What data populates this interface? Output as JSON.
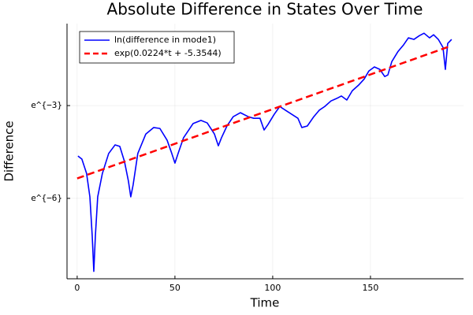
{
  "chart_data": {
    "type": "line",
    "title": "Absolute Difference in States Over Time",
    "x_label": "Time",
    "y_label": "Difference",
    "xlim": [
      -5.2,
      197.6
    ],
    "ylim": [
      -8.6,
      -0.35
    ],
    "xticks": [
      0,
      50,
      100,
      150
    ],
    "yticks": [
      {
        "value": -6,
        "label": "e^{−6}"
      },
      {
        "value": -3,
        "label": "e^{−3}"
      }
    ],
    "grid": true,
    "legend": "upper left",
    "series": [
      {
        "name": "ln(difference in mode1)",
        "color": "#0000ff",
        "dash": "solid",
        "x": [
          0.4,
          2.4,
          4.8,
          6.5,
          7.7,
          8.5,
          9.3,
          10.5,
          12.9,
          16.1,
          19.4,
          21.8,
          24.2,
          26.2,
          27.4,
          28.6,
          31,
          35.1,
          39.1,
          42.3,
          46,
          48.4,
          50,
          51.6,
          54.4,
          59.3,
          63.3,
          66.5,
          70.2,
          72.2,
          73.8,
          76.6,
          79.8,
          83.5,
          87.5,
          90.3,
          93.5,
          95.6,
          97.6,
          100.8,
          103.6,
          106.5,
          109.7,
          112.9,
          114.9,
          117.7,
          121,
          123.8,
          126.6,
          129.8,
          132.7,
          135.1,
          137.9,
          140.7,
          143.9,
          146.8,
          149.2,
          152,
          154.8,
          157.3,
          158.9,
          160.9,
          164.1,
          166.9,
          169.4,
          172.2,
          175,
          177.4,
          180.2,
          182.3,
          184.7,
          187.1,
          188.3,
          189.5,
          191.5
        ],
        "values": [
          -4.63,
          -4.73,
          -5.19,
          -5.95,
          -7.22,
          -8.36,
          -7.22,
          -5.95,
          -5.19,
          -4.55,
          -4.27,
          -4.32,
          -4.81,
          -5.44,
          -5.95,
          -5.57,
          -4.55,
          -3.92,
          -3.71,
          -3.74,
          -4.12,
          -4.55,
          -4.86,
          -4.55,
          -4.04,
          -3.58,
          -3.48,
          -3.56,
          -3.92,
          -4.3,
          -4.04,
          -3.66,
          -3.36,
          -3.23,
          -3.36,
          -3.41,
          -3.41,
          -3.79,
          -3.61,
          -3.28,
          -3.03,
          -3.15,
          -3.28,
          -3.41,
          -3.71,
          -3.66,
          -3.36,
          -3.15,
          -3.03,
          -2.85,
          -2.77,
          -2.69,
          -2.82,
          -2.52,
          -2.34,
          -2.14,
          -1.88,
          -1.75,
          -1.83,
          -2.06,
          -2.01,
          -1.58,
          -1.25,
          -1.04,
          -0.81,
          -0.86,
          -0.74,
          -0.66,
          -0.81,
          -0.71,
          -0.86,
          -1.12,
          -1.83,
          -0.99,
          -0.86
        ]
      },
      {
        "name": "exp(0.0224*t + -5.3544)",
        "color": "#ff0000",
        "dash": "dashed",
        "x": [
          0,
          191
        ],
        "values": [
          -5.354,
          -1.076
        ]
      }
    ]
  }
}
